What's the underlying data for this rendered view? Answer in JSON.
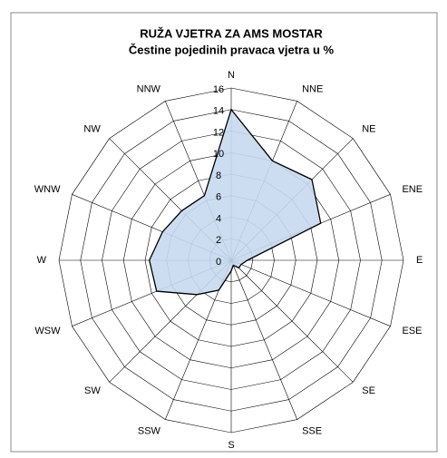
{
  "chart_data": {
    "type": "radar",
    "title": "RUŽA VJETRA ZA AMS MOSTAR",
    "subtitle": "Čestine pojedinih pravaca vjetra u %",
    "categories": [
      "N",
      "NNE",
      "NE",
      "ENE",
      "E",
      "ESE",
      "SE",
      "SSE",
      "S",
      "SSW",
      "SW",
      "WSW",
      "W",
      "WNW",
      "NW",
      "NNW"
    ],
    "values": [
      14,
      10,
      10.6,
      9,
      1.5,
      1,
      1,
      0.5,
      1,
      3,
      4.5,
      7.5,
      7.6,
      6.9,
      6.5,
      6.5
    ],
    "color": "#c6d9f1",
    "line_color": "#000000",
    "ylim": [
      0,
      16
    ],
    "yticks": [
      0,
      2,
      4,
      6,
      8,
      10,
      12,
      14,
      16
    ],
    "grid": true
  }
}
